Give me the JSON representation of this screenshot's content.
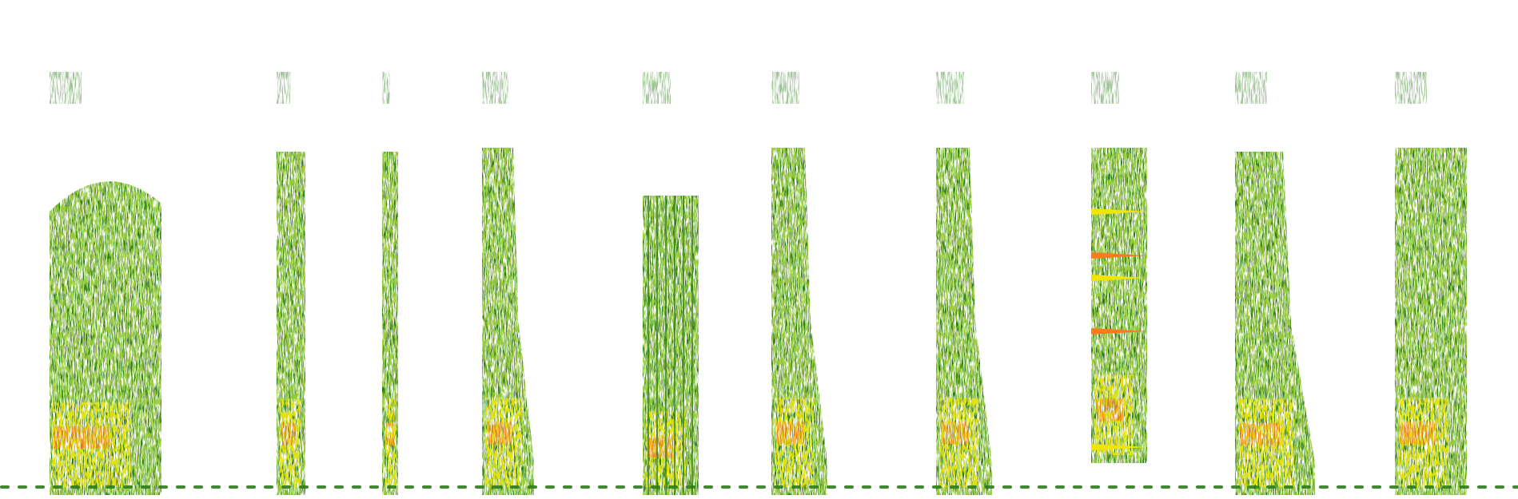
{
  "image": {
    "kind": "spectrogram",
    "background": "#ffffff",
    "colors": {
      "low": "#2e7d1a",
      "mid": "#9acd32",
      "high": "#f2e600",
      "peak": "#ff7a1a",
      "max": "#e8341a"
    }
  }
}
